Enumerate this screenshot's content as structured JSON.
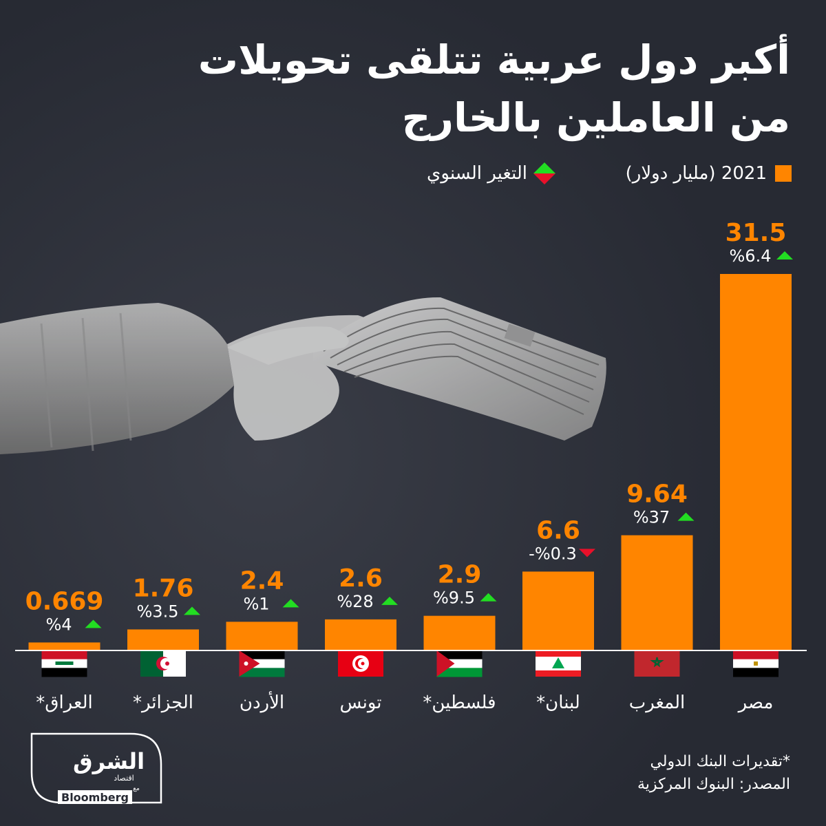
{
  "title": {
    "line1": "أكبر دول عربية تتلقى تحويلات",
    "line2": "من العاملين بالخارج"
  },
  "legend": {
    "value_label": "2021 (مليار دولار)",
    "change_label": "التغير السنوي"
  },
  "footnotes": {
    "estimate_note": "*تقديرات البنك الدولي",
    "source": "المصدر: البنوك المركزية"
  },
  "logo": {
    "brand": "الشرق",
    "sub": "اقتصاد",
    "with": "مع",
    "partner": "Bloomberg"
  },
  "colors": {
    "background": "#272a33",
    "bar": "#ff8500",
    "value_text": "#ff8500",
    "increase": "#22dd22",
    "decrease": "#e8102a",
    "text": "#ffffff"
  },
  "chart_data": {
    "type": "bar",
    "categories": [
      "العراق*",
      "الجزائر*",
      "الأردن",
      "تونس",
      "فلسطين*",
      "لبنان*",
      "المغرب",
      "مصر"
    ],
    "values": [
      0.669,
      1.76,
      2.4,
      2.6,
      2.9,
      6.6,
      9.64,
      31.5
    ],
    "value_labels": [
      "0.669",
      "1.76",
      "2.4",
      "2.6",
      "2.9",
      "6.6",
      "9.64",
      "31.5"
    ],
    "change_labels": [
      "%4",
      "%3.5",
      "%1",
      "%28",
      "%9.5",
      "-%0.3",
      "%37",
      "%6.4"
    ],
    "change_direction": [
      "up",
      "up",
      "up",
      "up",
      "up",
      "down",
      "up",
      "up"
    ],
    "flags": [
      "iraq-flag",
      "algeria-flag",
      "jordan-flag",
      "tunisia-flag",
      "palestine-flag",
      "lebanon-flag",
      "morocco-flag",
      "egypt-flag"
    ],
    "ylim": [
      0,
      31.5
    ],
    "grid": false
  }
}
